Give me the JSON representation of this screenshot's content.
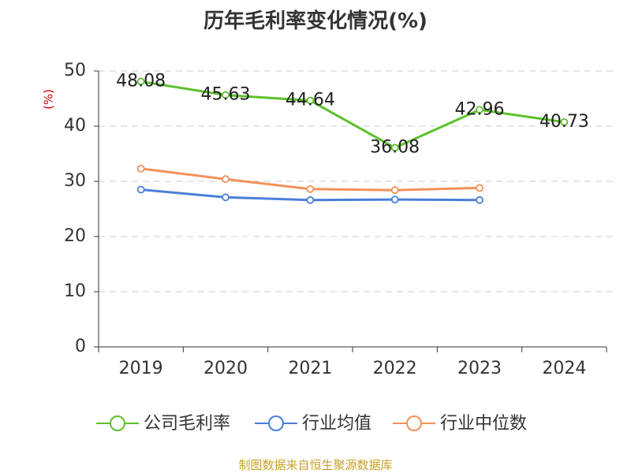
{
  "chart_data": {
    "type": "line",
    "title": "历年毛利率变化情况(%)",
    "ylabel": "(%)",
    "xlabel": "",
    "categories": [
      "2019",
      "2020",
      "2021",
      "2022",
      "2023",
      "2024"
    ],
    "ylim": [
      0,
      50
    ],
    "yticks": [
      0,
      10,
      20,
      30,
      40,
      50
    ],
    "grid": true,
    "legend_position": "bottom",
    "series": [
      {
        "name": "公司毛利率",
        "color": "#5cc12b",
        "values": [
          48.08,
          45.63,
          44.64,
          36.08,
          42.96,
          40.73
        ],
        "labels": [
          "48.08",
          "45.63",
          "44.64",
          "36.08",
          "42.96",
          "40.73"
        ]
      },
      {
        "name": "行业均值",
        "color": "#4a7fd9",
        "values": [
          28.5,
          27.1,
          26.6,
          26.7,
          26.6,
          null
        ],
        "labels": []
      },
      {
        "name": "行业中位数",
        "color": "#f4915a",
        "values": [
          32.3,
          30.4,
          28.6,
          28.4,
          28.8,
          null
        ],
        "labels": []
      }
    ]
  },
  "source": "制图数据来自恒生聚源数据库"
}
